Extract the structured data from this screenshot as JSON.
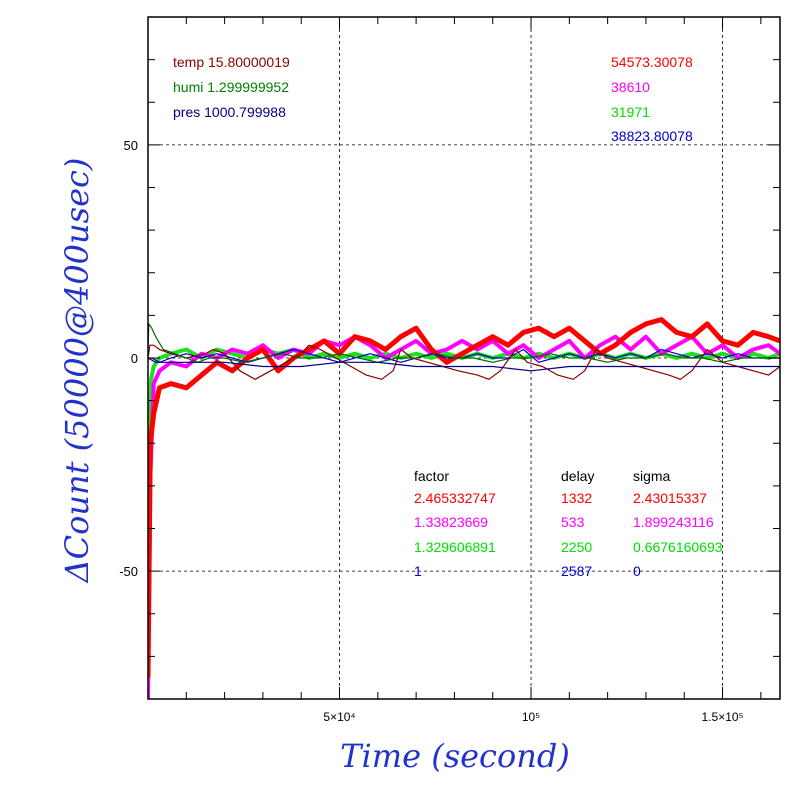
{
  "chart_data": {
    "type": "line",
    "xlabel": "Time (second)",
    "ylabel": "ΔCount (50000@400usec)",
    "xlim": [
      0,
      165000
    ],
    "ylim": [
      -80,
      80
    ],
    "x_ticks": [
      {
        "value": 50000,
        "label": "5×10⁴"
      },
      {
        "value": 100000,
        "label": "10⁵"
      },
      {
        "value": 150000,
        "label": "1.5×10⁵"
      }
    ],
    "y_ticks": [
      {
        "value": -50,
        "label": "-50"
      },
      {
        "value": 0,
        "label": "0"
      },
      {
        "value": 50,
        "label": "50"
      }
    ],
    "grid": true,
    "environment": [
      {
        "text": "temp 15.80000019",
        "color": "#8b0000"
      },
      {
        "text": "humi 1.299999952",
        "color": "#008000"
      },
      {
        "text": "pres 1000.799988",
        "color": "#000080"
      }
    ],
    "baselines": [
      {
        "text": "54573.30078",
        "color": "#ff0000"
      },
      {
        "text": "38610",
        "color": "#ff00ff"
      },
      {
        "text": "31971",
        "color": "#00dd00"
      },
      {
        "text": "38823.80078",
        "color": "#0000cc"
      }
    ],
    "fit_table": {
      "headers": [
        "factor",
        "delay",
        "sigma"
      ],
      "rows": [
        {
          "color": "#ff0000",
          "cells": [
            "2.465332747",
            "1332",
            "2.43015337"
          ]
        },
        {
          "color": "#ff00ff",
          "cells": [
            "1.33823669",
            "533",
            "1.899243116"
          ]
        },
        {
          "color": "#00dd00",
          "cells": [
            "1.329606891",
            "2250",
            "0.6676160693"
          ]
        },
        {
          "color": "#0000cc",
          "cells": [
            "1",
            "2587",
            "0"
          ]
        }
      ]
    },
    "series": [
      {
        "color": "#ff0000",
        "width": 5,
        "x": [
          0,
          600,
          1500,
          3000,
          6000,
          10000,
          14000,
          18000,
          22000,
          26000,
          30000,
          34000,
          38000,
          42000,
          46000,
          50000,
          54000,
          58000,
          62000,
          66000,
          70000,
          74000,
          78000,
          82000,
          86000,
          90000,
          94000,
          98000,
          102000,
          106000,
          110000,
          114000,
          118000,
          122000,
          126000,
          130000,
          134000,
          138000,
          142000,
          146000,
          150000,
          154000,
          158000,
          162000,
          165000
        ],
        "y": [
          -75,
          -20,
          -13,
          -7,
          -6,
          -7,
          -4,
          -1,
          -3,
          0,
          2,
          -3,
          0,
          2,
          4,
          1,
          5,
          4,
          2,
          5,
          7,
          2,
          -1,
          1,
          3,
          5,
          3,
          6,
          7,
          5,
          7,
          4,
          1,
          3,
          6,
          8,
          9,
          6,
          5,
          8,
          4,
          3,
          6,
          5,
          4
        ]
      },
      {
        "color": "#ff00ff",
        "width": 4,
        "x": [
          0,
          600,
          1500,
          3000,
          6000,
          10000,
          14000,
          18000,
          22000,
          26000,
          30000,
          34000,
          38000,
          42000,
          46000,
          50000,
          54000,
          58000,
          62000,
          66000,
          70000,
          74000,
          78000,
          82000,
          86000,
          90000,
          94000,
          98000,
          102000,
          106000,
          110000,
          114000,
          118000,
          122000,
          126000,
          130000,
          134000,
          138000,
          142000,
          146000,
          150000,
          154000,
          158000,
          162000,
          165000
        ],
        "y": [
          -80,
          -28,
          -6,
          -3,
          -1,
          -2,
          1,
          0,
          2,
          1,
          3,
          0,
          2,
          1,
          4,
          3,
          5,
          3,
          0,
          2,
          4,
          1,
          2,
          4,
          2,
          4,
          1,
          3,
          0,
          2,
          4,
          0,
          3,
          5,
          2,
          5,
          1,
          3,
          5,
          1,
          3,
          0,
          2,
          3,
          1
        ]
      },
      {
        "color": "#22dd22",
        "width": 4,
        "x": [
          0,
          300,
          800,
          1500,
          3000,
          6000,
          10000,
          14000,
          18000,
          22000,
          26000,
          30000,
          34000,
          38000,
          42000,
          46000,
          50000,
          54000,
          58000,
          62000,
          66000,
          70000,
          74000,
          78000,
          82000,
          86000,
          90000,
          94000,
          98000,
          102000,
          106000,
          110000,
          114000,
          118000,
          122000,
          126000,
          130000,
          134000,
          138000,
          142000,
          146000,
          150000,
          154000,
          158000,
          162000,
          165000
        ],
        "y": [
          -80,
          -20,
          -5,
          -2,
          0,
          1,
          2,
          0,
          2,
          1,
          0,
          2,
          1,
          2,
          0,
          1,
          0,
          1,
          0,
          1,
          0,
          1,
          0,
          1,
          0,
          1,
          0,
          1,
          0,
          1,
          0,
          1,
          0,
          1,
          0,
          1,
          0,
          1,
          0,
          1,
          0,
          1,
          0,
          1,
          0,
          1
        ]
      },
      {
        "color": "#0000cc",
        "width": 1.2,
        "x": [
          0,
          1000,
          3000,
          6000,
          10000,
          14000,
          18000,
          22000,
          26000,
          30000,
          34000,
          38000,
          42000,
          46000,
          50000,
          54000,
          58000,
          62000,
          66000,
          70000,
          74000,
          78000,
          82000,
          86000,
          90000,
          94000,
          98000,
          102000,
          106000,
          110000,
          114000,
          118000,
          122000,
          126000,
          130000,
          134000,
          138000,
          142000,
          146000,
          150000,
          154000,
          158000,
          162000,
          165000
        ],
        "y": [
          0,
          0,
          -1,
          0,
          1,
          0,
          1,
          0,
          -1,
          0,
          1,
          2,
          1,
          0,
          -1,
          0,
          1,
          0,
          -1,
          0,
          1,
          0,
          0,
          1,
          0,
          0,
          2,
          -1,
          0,
          1,
          0,
          1,
          0,
          1,
          0,
          2,
          1,
          0,
          1,
          0,
          1,
          0,
          0,
          0
        ]
      },
      {
        "color": "#8b0000",
        "width": 1.2,
        "x": [
          0,
          500,
          1500,
          3000,
          6000,
          10000,
          15000,
          17000,
          20000,
          24000,
          28000,
          32000,
          36000,
          40000,
          42000,
          45000,
          49000,
          53000,
          57000,
          61000,
          64000,
          66000,
          69000,
          73000,
          77000,
          81000,
          86000,
          89000,
          92000,
          96000,
          99000,
          103000,
          107000,
          111000,
          114000,
          117000,
          120000,
          124000,
          128000,
          132000,
          136000,
          139000,
          142000,
          146000,
          150000,
          154000,
          158000,
          162000,
          165000
        ],
        "y": [
          0,
          3,
          3,
          2,
          1,
          0,
          1,
          2,
          1,
          -3,
          -5,
          -3,
          -1,
          1,
          3,
          2,
          0,
          -2,
          -4,
          -5,
          -3,
          2,
          0,
          -1,
          -2,
          -3,
          -4,
          -5,
          -3,
          2,
          -1,
          -2,
          -4,
          -5,
          -3,
          2,
          0,
          -1,
          -2,
          -3,
          -4,
          -5,
          -3,
          2,
          -1,
          -2,
          -3,
          -4,
          -2
        ]
      },
      {
        "color": "#006400",
        "width": 1.2,
        "x": [
          0,
          200,
          1000,
          2000,
          4000,
          7000,
          10000,
          13000,
          16000,
          20000,
          25000,
          30000,
          35000,
          40000,
          45000,
          50000,
          55000,
          60000,
          65000,
          70000,
          75000,
          80000,
          85000,
          90000,
          95000,
          100000,
          105000,
          110000,
          115000,
          120000,
          125000,
          130000,
          135000,
          140000,
          145000,
          150000,
          155000,
          160000,
          165000
        ],
        "y": [
          2,
          8,
          7,
          5,
          2,
          1,
          0,
          -1,
          0,
          0,
          -1,
          0,
          1,
          0,
          0,
          1,
          0,
          -1,
          0,
          0,
          1,
          0,
          0,
          -1,
          0,
          0,
          1,
          0,
          0,
          -1,
          0,
          0,
          1,
          0,
          0,
          -1,
          0,
          0,
          0
        ]
      },
      {
        "color": "#000080",
        "width": 1.2,
        "x": [
          0,
          2000,
          10000,
          20000,
          30000,
          40000,
          50000,
          60000,
          70000,
          80000,
          90000,
          100000,
          110000,
          120000,
          130000,
          140000,
          150000,
          160000,
          165000
        ],
        "y": [
          0,
          -1,
          -1,
          -1,
          -2,
          -2,
          -1,
          -1,
          -2,
          -2,
          -2,
          -3,
          -2,
          -2,
          -2,
          -2,
          -2,
          -2,
          -2
        ]
      }
    ]
  }
}
